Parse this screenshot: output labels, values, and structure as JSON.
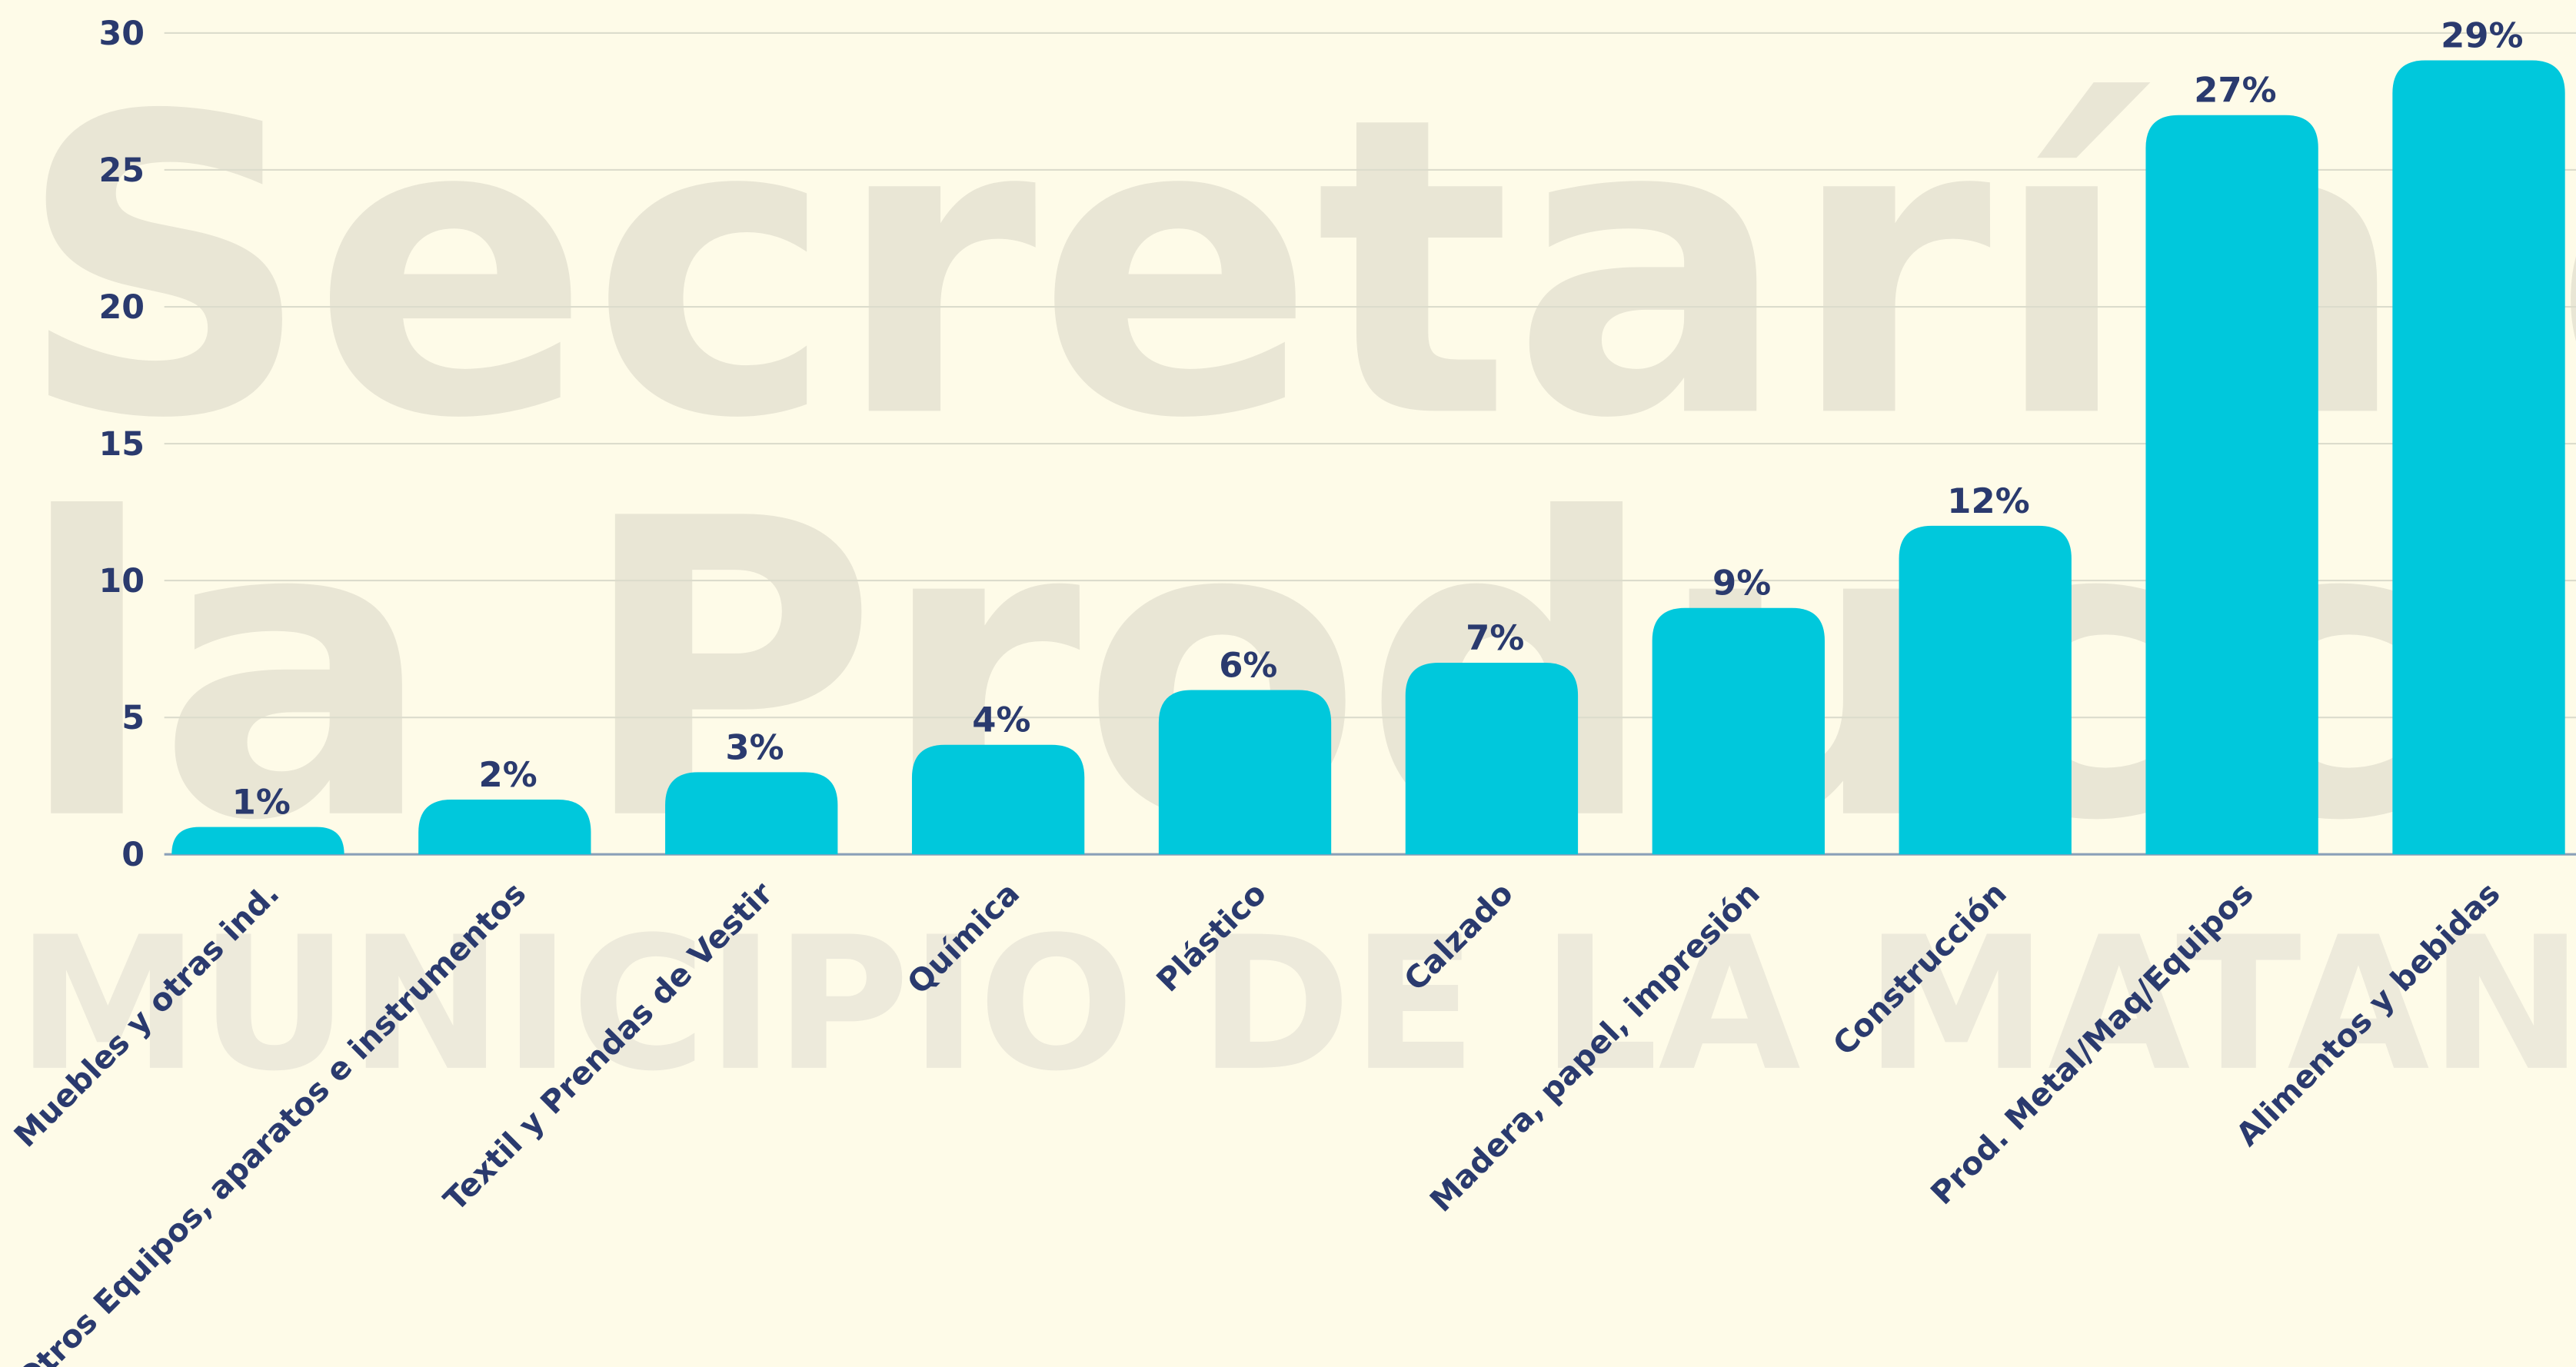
{
  "watermark": [
    "Secretaría de",
    "la Producción",
    "MUNICIPIO DE LA MATANZA"
  ],
  "chart_data": {
    "type": "bar",
    "categories": [
      "Muebles y otras ind.",
      "Otros Equipos, aparatos e instrumentos",
      "Textil y Prendas de Vestir",
      "Química",
      "Plástico",
      "Calzado",
      "Madera, papel, impresión",
      "Construcción",
      "Prod. Metal/Maq/Equipos",
      "Alimentos y bebidas"
    ],
    "values": [
      1,
      2,
      3,
      4,
      6,
      7,
      9,
      12,
      27,
      29
    ],
    "value_labels": [
      "1%",
      "2%",
      "3%",
      "4%",
      "6%",
      "7%",
      "9%",
      "12%",
      "27%",
      "29%"
    ],
    "color": "#00c8dc",
    "ylim": [
      0,
      30
    ],
    "yticks": [
      0,
      5,
      10,
      15,
      20,
      25,
      30
    ],
    "grid": true
  }
}
